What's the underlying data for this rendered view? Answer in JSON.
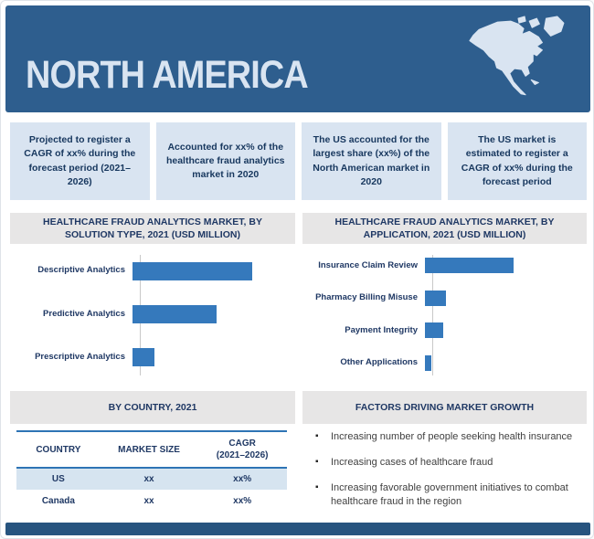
{
  "header": {
    "title": "NORTH AMERICA"
  },
  "highlights": [
    "Projected to register a CAGR of xx% during the forecast period (2021–2026)",
    "Accounted for xx% of the healthcare fraud analytics market in 2020",
    "The US accounted for the largest share (xx%) of the North American market in 2020",
    "The US market is estimated to register a CAGR of xx% during the forecast period"
  ],
  "sections": {
    "solution_title": "HEALTHCARE FRAUD ANALYTICS MARKET, BY SOLUTION TYPE, 2021 (USD MILLION)",
    "application_title": "HEALTHCARE FRAUD ANALYTICS MARKET, BY APPLICATION, 2021 (USD MILLION)",
    "country_title": "BY COUNTRY, 2021",
    "factors_title": "FACTORS DRIVING MARKET GROWTH"
  },
  "chart_data": [
    {
      "type": "bar",
      "orientation": "horizontal",
      "title": "HEALTHCARE FRAUD ANALYTICS MARKET, BY SOLUTION TYPE, 2021 (USD MILLION)",
      "categories": [
        "Descriptive Analytics",
        "Predictive Analytics",
        "Prescriptive Analytics"
      ],
      "values": [
        100,
        70,
        18
      ],
      "values_relative": true,
      "note": "No numeric data labels or axis ticks shown; values are relative bar lengths (max = 100)",
      "bar_color": "#3579bc",
      "grid": false,
      "legend": false
    },
    {
      "type": "bar",
      "orientation": "horizontal",
      "title": "HEALTHCARE FRAUD ANALYTICS MARKET, BY APPLICATION, 2021 (USD MILLION)",
      "categories": [
        "Insurance Claim Review",
        "Pharmacy Billing Misuse",
        "Payment Integrity",
        "Other Applications"
      ],
      "values": [
        100,
        24,
        21,
        7
      ],
      "values_relative": true,
      "note": "No numeric data labels or axis ticks shown; values are relative bar lengths (max = 100)",
      "bar_color": "#3579bc",
      "grid": false,
      "legend": false
    }
  ],
  "country_table": {
    "headers": {
      "country": "COUNTRY",
      "market_size": "MARKET SIZE",
      "cagr_line1": "CAGR",
      "cagr_line2": "(2021–2026)"
    },
    "rows": [
      {
        "country": "US",
        "market_size": "xx",
        "cagr": "xx%"
      },
      {
        "country": "Canada",
        "market_size": "xx",
        "cagr": "xx%"
      }
    ]
  },
  "factors": {
    "items": [
      "Increasing number of people seeking health insurance",
      "Increasing cases of healthcare fraud",
      "Increasing favorable government initiatives to combat healthcare fraud in the region"
    ]
  },
  "colors": {
    "header_blue": "#2e5e8e",
    "footer_blue": "#27547f",
    "highlight_box_blue": "#d9e4f1",
    "band_gray": "#e7e6e6",
    "navy_text": "#1f3864",
    "bar_blue": "#3579bc",
    "table_rule_blue": "#2e74b5",
    "table_row_fill": "#d6e4f0"
  }
}
